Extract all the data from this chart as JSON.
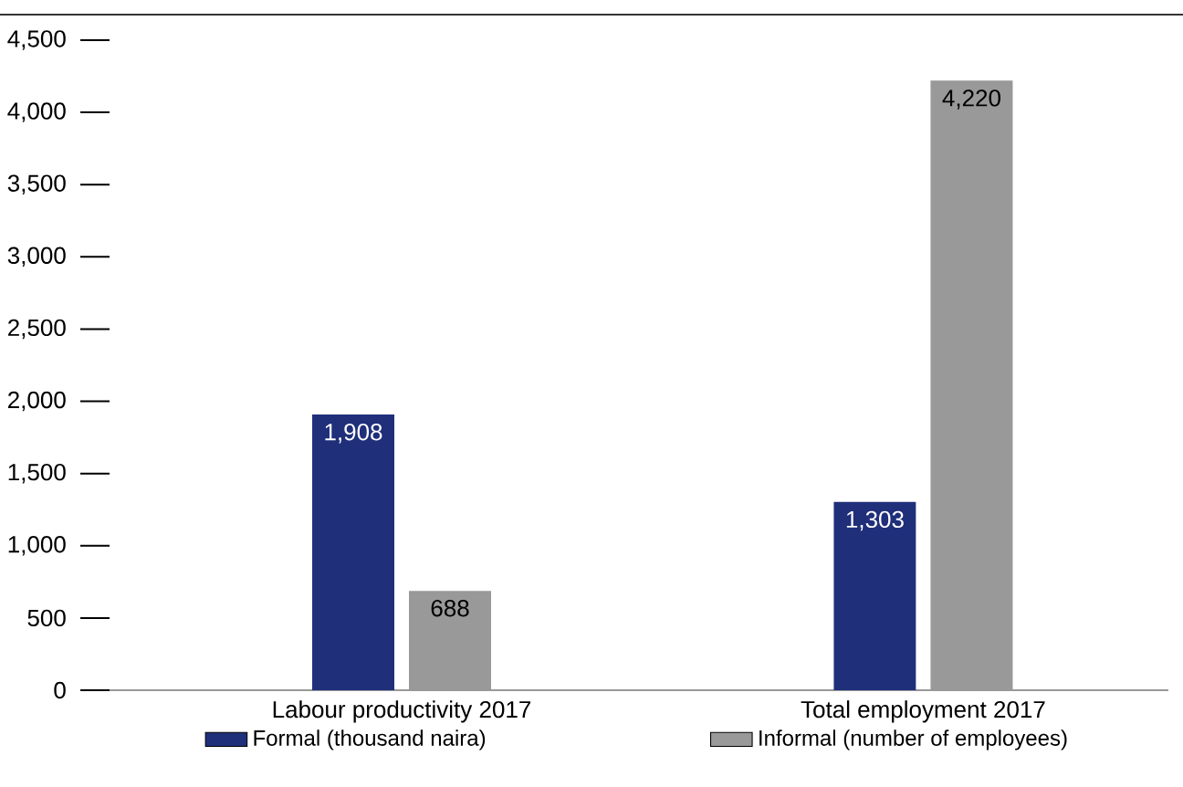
{
  "chart_data": {
    "type": "bar",
    "categories": [
      "Labour productivity 2017",
      "Total employment 2017"
    ],
    "series": [
      {
        "name": "Formal (thousand naira)",
        "color": "#1f2f7a",
        "values": [
          1908,
          1303
        ],
        "value_labels": [
          "1,908",
          "1,303"
        ]
      },
      {
        "name": "Informal (number of employees)",
        "color": "#999999",
        "values": [
          688,
          4220
        ],
        "value_labels": [
          "688",
          "4,220"
        ]
      }
    ],
    "ylim": [
      0,
      4500
    ],
    "yticks": [
      0,
      {
        "value": 500,
        "label": "500"
      },
      {
        "value": 1000,
        "label": "1,000"
      },
      {
        "value": 1500,
        "label": "1,500"
      },
      {
        "value": 2000,
        "label": "2,000"
      },
      {
        "value": 2500,
        "label": "2,500"
      },
      {
        "value": 3000,
        "label": "3,000"
      },
      {
        "value": 3500,
        "label": "3,500"
      },
      {
        "value": 4000,
        "label": "4,000"
      },
      {
        "value": 4500,
        "label": "4,500"
      }
    ],
    "grid": false,
    "legend": "bottom"
  }
}
